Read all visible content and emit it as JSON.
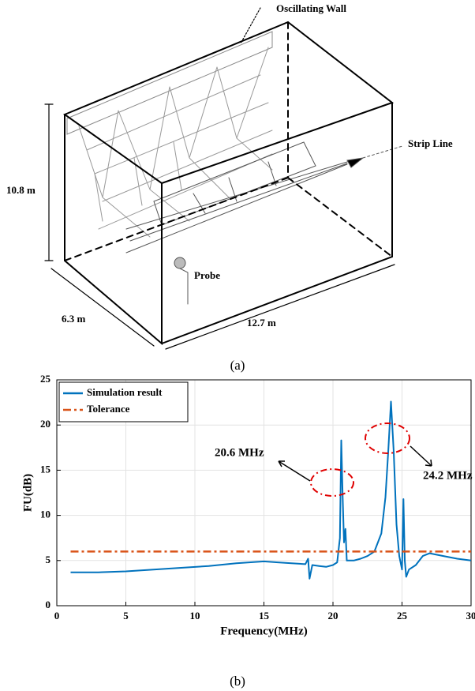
{
  "diagram": {
    "wall_label": "Oscillating Wall",
    "strip_label": "Strip Line",
    "height_label": "10.8 m",
    "depth_label": "6.3 m",
    "width_label": "12.7 m",
    "probe_label": "Probe"
  },
  "caption_a": "(a)",
  "chart_data": {
    "type": "line",
    "x": [
      1,
      3,
      5,
      7,
      9,
      11,
      13,
      15,
      16,
      17,
      18,
      18.2,
      18.3,
      18.5,
      19,
      19.5,
      20,
      20.3,
      20.5,
      20.6,
      20.7,
      20.8,
      20.9,
      21,
      21.5,
      22,
      22.5,
      23,
      23.5,
      23.8,
      24,
      24.2,
      24.4,
      24.6,
      24.8,
      25,
      25.1,
      25.2,
      25.3,
      25.5,
      26,
      26.5,
      27,
      28,
      29,
      30
    ],
    "series": [
      {
        "name": "Simulation result",
        "color": "#0072bd",
        "dash": "solid",
        "values": [
          3.7,
          3.7,
          3.8,
          4.0,
          4.2,
          4.4,
          4.7,
          4.9,
          4.8,
          4.7,
          4.6,
          5.2,
          3.0,
          4.5,
          4.4,
          4.3,
          4.5,
          4.8,
          7.5,
          18.3,
          12,
          7,
          8.5,
          5,
          5.0,
          5.2,
          5.5,
          6,
          8,
          12,
          17,
          22.6,
          17,
          9,
          5.5,
          4,
          11.8,
          5,
          3.2,
          4,
          4.5,
          5.5,
          5.8,
          5.5,
          5.2,
          5.0
        ]
      },
      {
        "name": "Tolerance",
        "color": "#d95319",
        "dash": "dashdot",
        "values": [
          6,
          6,
          6,
          6,
          6,
          6,
          6,
          6,
          6,
          6,
          6,
          6,
          6,
          6,
          6,
          6,
          6,
          6,
          6,
          6,
          6,
          6,
          6,
          6,
          6,
          6,
          6,
          6,
          6,
          6,
          6,
          6,
          6,
          6,
          6,
          6,
          6,
          6,
          6,
          6,
          6,
          6,
          6,
          6,
          6,
          6
        ]
      }
    ],
    "xlabel": "Frequency(MHz)",
    "ylabel": "FU(dB)",
    "xlim": [
      0,
      30
    ],
    "ylim": [
      0,
      25
    ],
    "xticks": [
      0,
      5,
      10,
      15,
      20,
      25,
      30
    ],
    "yticks": [
      0,
      5,
      10,
      15,
      20,
      25
    ],
    "grid": true,
    "legend": "upper left",
    "annotations": [
      "20.6 MHz",
      "24.2 MHz"
    ]
  },
  "caption_b": "(b)"
}
